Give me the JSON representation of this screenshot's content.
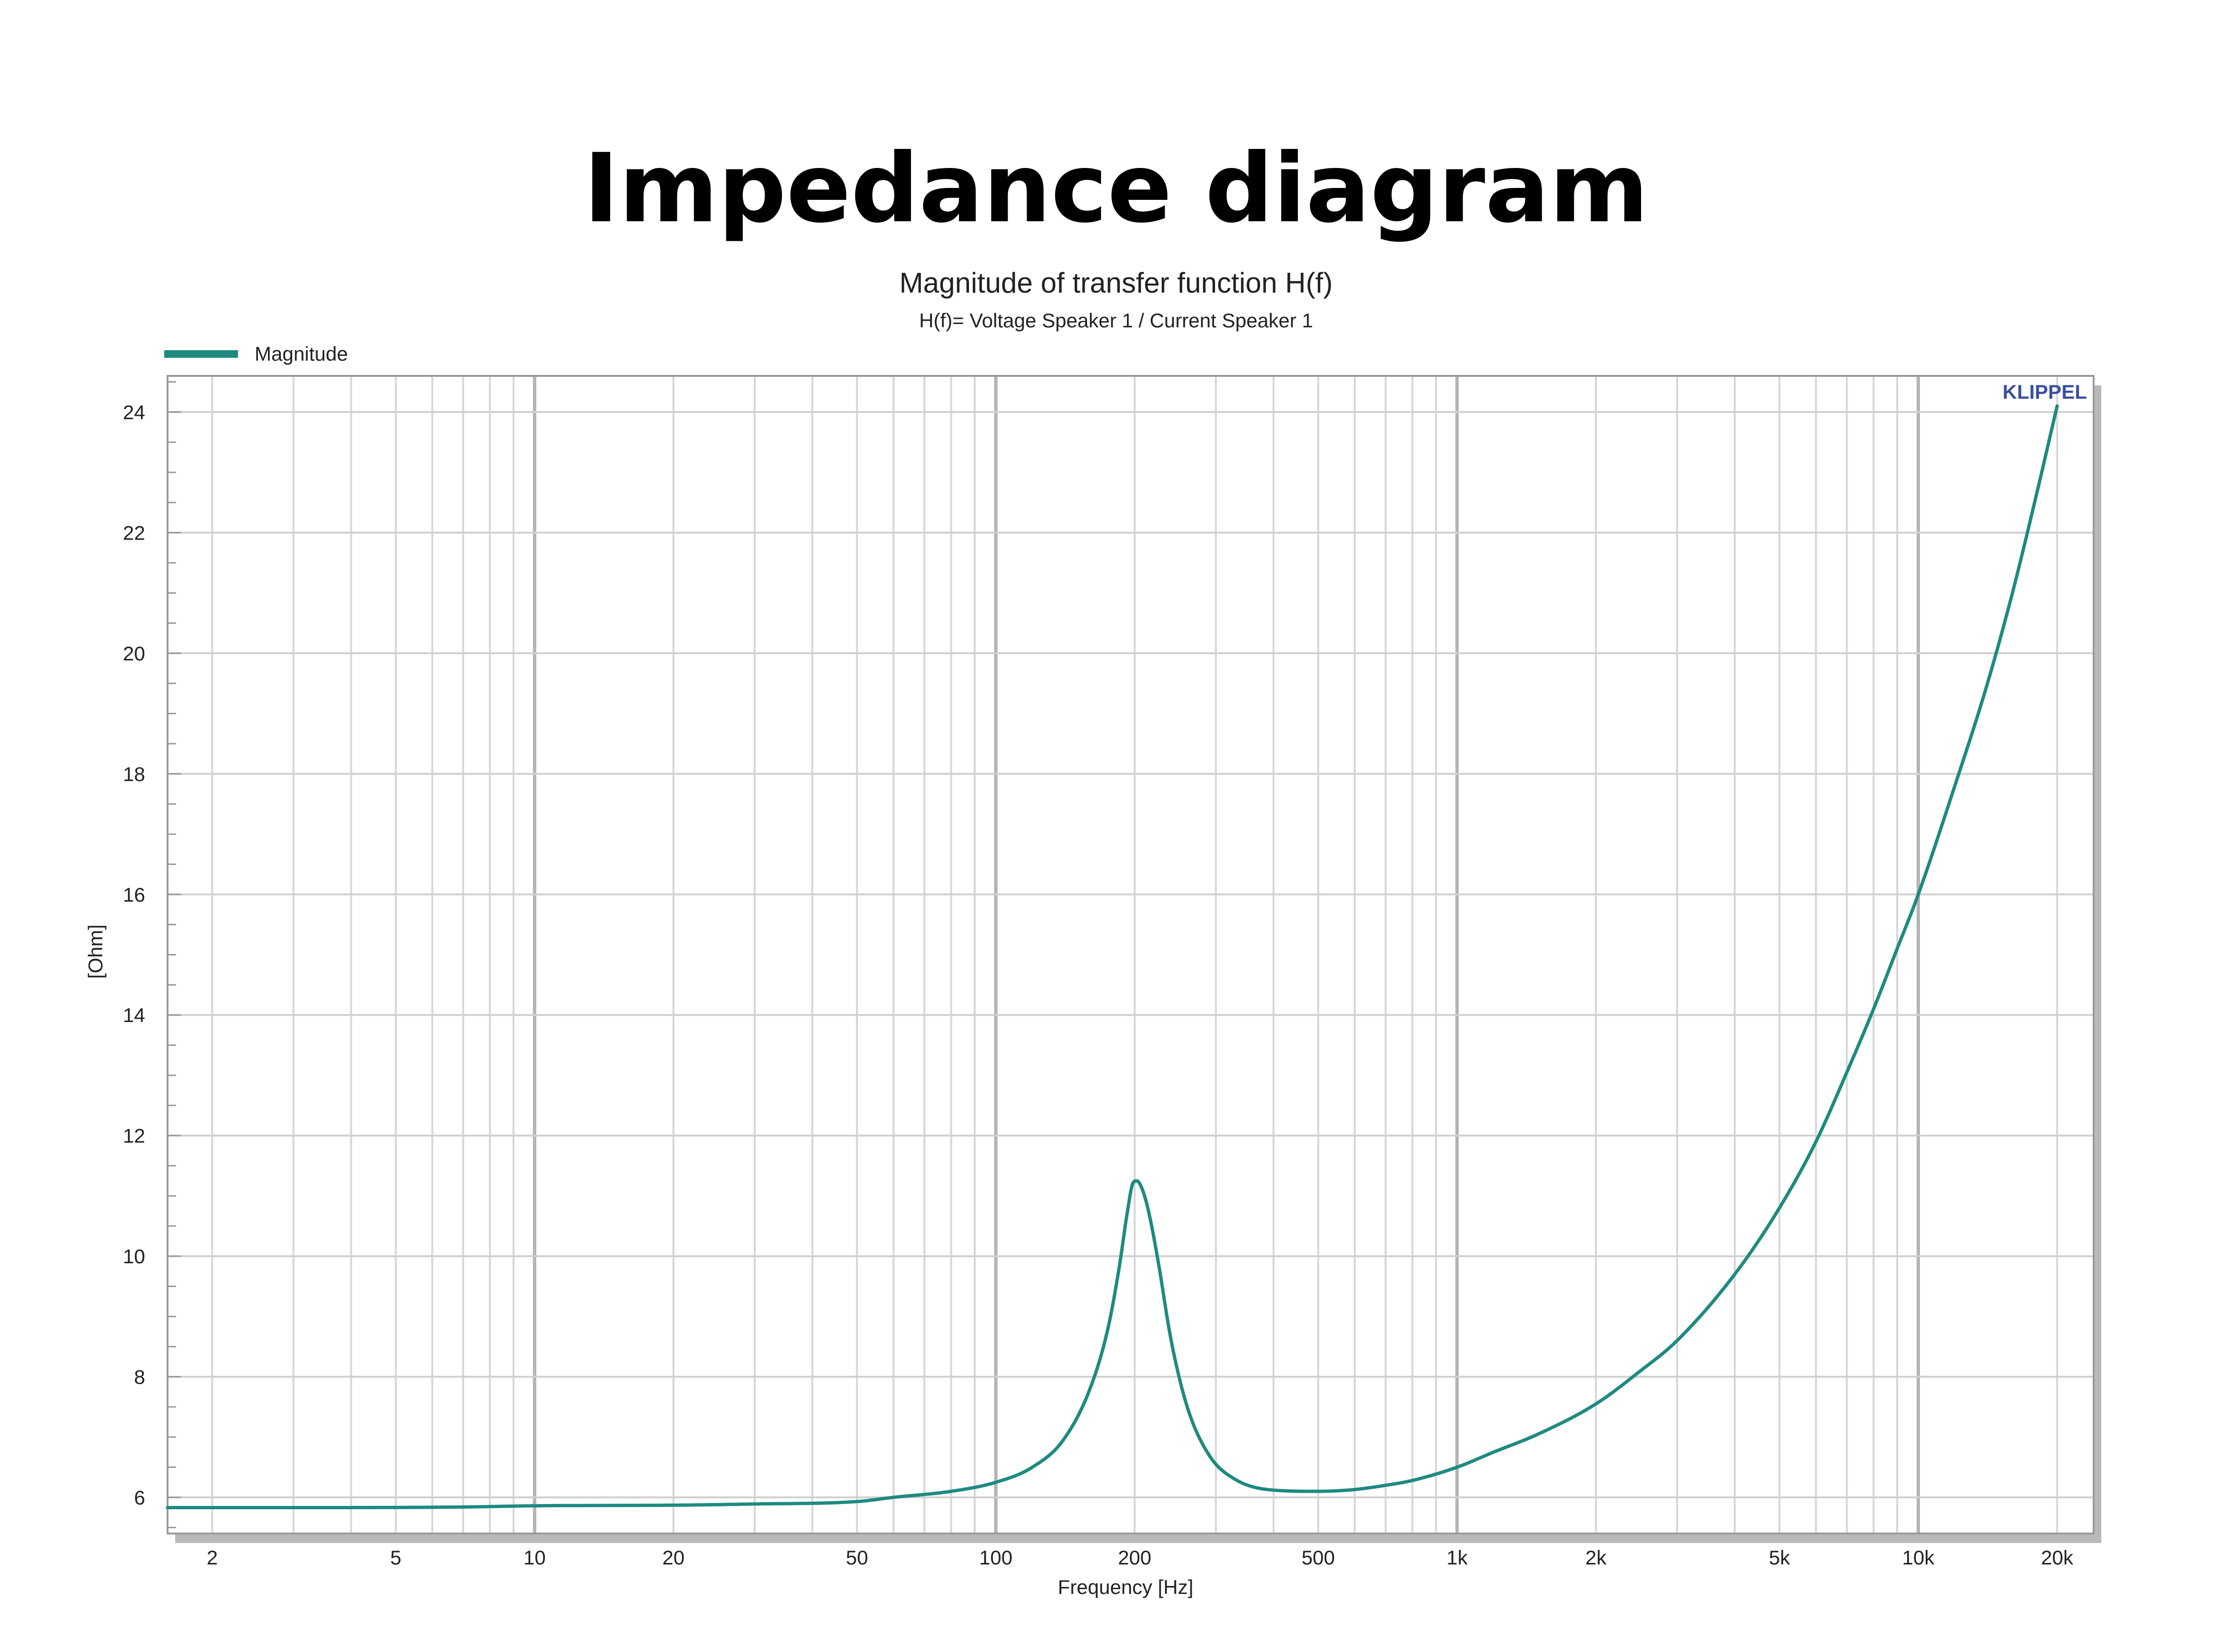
{
  "page": {
    "heading": "Impedance diagram"
  },
  "chart_data": {
    "type": "line",
    "title": "Magnitude of transfer function H(f)",
    "subtitle": "H(f)= Voltage Speaker 1 / Current Speaker 1",
    "xlabel": "Frequency [Hz]",
    "ylabel": "[Ohm]",
    "brand": "KLIPPEL",
    "x_scale": "log",
    "xlim": [
      1.6,
      24000
    ],
    "ylim": [
      5.4,
      24.6
    ],
    "grid": true,
    "legend_position": "top-left",
    "x_ticks": [
      {
        "value": 2,
        "label": "2"
      },
      {
        "value": 5,
        "label": "5"
      },
      {
        "value": 10,
        "label": "10"
      },
      {
        "value": 20,
        "label": "20"
      },
      {
        "value": 50,
        "label": "50"
      },
      {
        "value": 100,
        "label": "100"
      },
      {
        "value": 200,
        "label": "200"
      },
      {
        "value": 500,
        "label": "500"
      },
      {
        "value": 1000,
        "label": "1k"
      },
      {
        "value": 2000,
        "label": "2k"
      },
      {
        "value": 5000,
        "label": "5k"
      },
      {
        "value": 10000,
        "label": "10k"
      },
      {
        "value": 20000,
        "label": "20k"
      }
    ],
    "y_ticks": [
      {
        "value": 6,
        "label": "6"
      },
      {
        "value": 8,
        "label": "8"
      },
      {
        "value": 10,
        "label": "10"
      },
      {
        "value": 12,
        "label": "12"
      },
      {
        "value": 14,
        "label": "14"
      },
      {
        "value": 16,
        "label": "16"
      },
      {
        "value": 18,
        "label": "18"
      },
      {
        "value": 20,
        "label": "20"
      },
      {
        "value": 22,
        "label": "22"
      },
      {
        "value": 24,
        "label": "24"
      }
    ],
    "series": [
      {
        "name": "Magnitude",
        "color": "#1e8a80",
        "x": [
          1.6,
          3,
          7,
          10,
          20,
          30,
          50,
          60,
          80,
          100,
          120,
          140,
          160,
          175,
          185,
          193,
          198,
          202,
          208,
          215,
          225,
          240,
          260,
          290,
          330,
          400,
          500,
          600,
          700,
          800,
          1000,
          1200,
          1500,
          2000,
          2500,
          3000,
          4000,
          5000,
          6000,
          7000,
          8000,
          9000,
          10000,
          12000,
          14000,
          16000,
          18000,
          20000
        ],
        "y": [
          5.83,
          5.83,
          5.84,
          5.86,
          5.87,
          5.89,
          5.93,
          6.0,
          6.1,
          6.25,
          6.5,
          6.95,
          7.8,
          8.8,
          9.8,
          10.75,
          11.2,
          11.25,
          11.1,
          10.7,
          9.9,
          8.6,
          7.5,
          6.7,
          6.3,
          6.12,
          6.1,
          6.13,
          6.2,
          6.28,
          6.5,
          6.75,
          7.05,
          7.55,
          8.1,
          8.6,
          9.7,
          10.8,
          11.9,
          13.05,
          14.1,
          15.1,
          16.0,
          17.8,
          19.4,
          21.0,
          22.6,
          24.1
        ]
      }
    ]
  }
}
